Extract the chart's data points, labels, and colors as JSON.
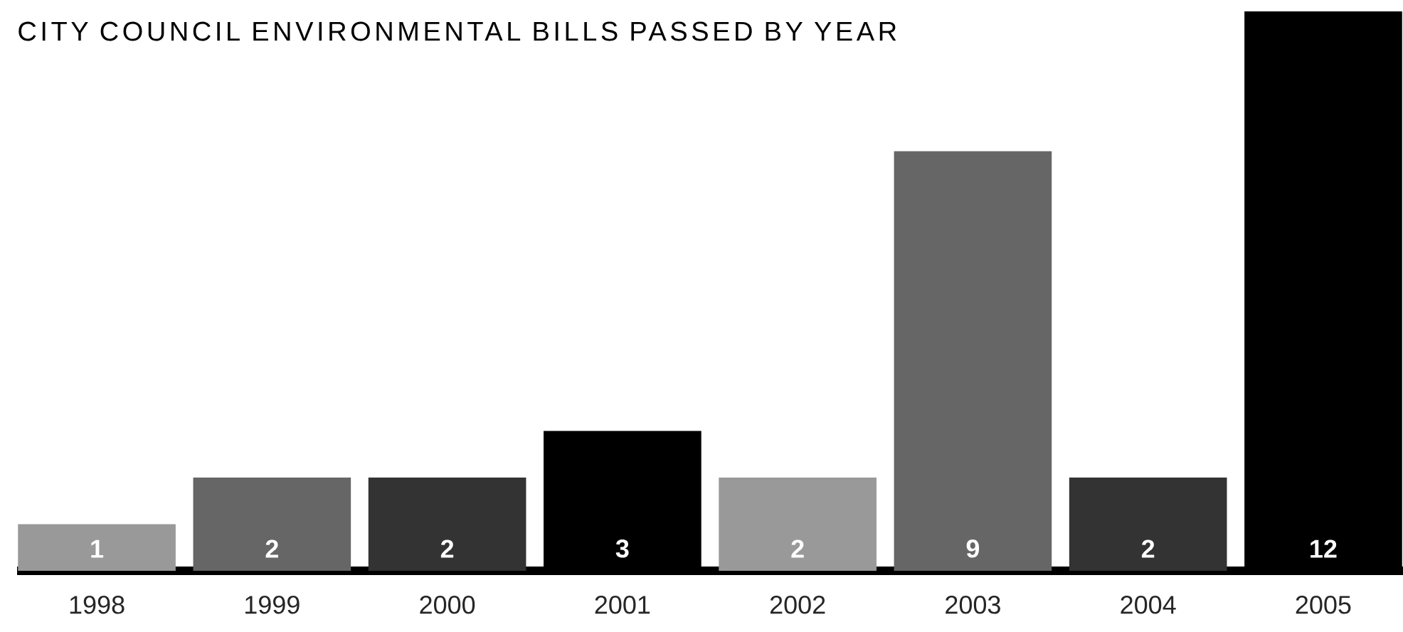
{
  "chart_data": {
    "type": "bar",
    "title": "CITY COUNCIL ENVIRONMENTAL BILLS PASSED BY YEAR",
    "categories": [
      "1998",
      "1999",
      "2000",
      "2001",
      "2002",
      "2003",
      "2004",
      "2005"
    ],
    "values": [
      1,
      2,
      2,
      3,
      2,
      9,
      2,
      12
    ],
    "colors": [
      "#999999",
      "#666666",
      "#333333",
      "#000000",
      "#999999",
      "#666666",
      "#333333",
      "#000000"
    ],
    "data_labels": true
  }
}
